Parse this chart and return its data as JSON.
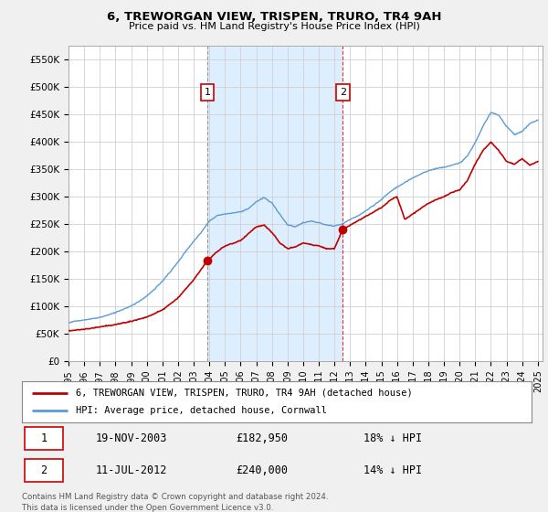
{
  "title": "6, TREWORGAN VIEW, TRISPEN, TRURO, TR4 9AH",
  "subtitle": "Price paid vs. HM Land Registry's House Price Index (HPI)",
  "ylim": [
    0,
    575000
  ],
  "yticks": [
    0,
    50000,
    100000,
    150000,
    200000,
    250000,
    300000,
    350000,
    400000,
    450000,
    500000,
    550000
  ],
  "ytick_labels": [
    "£0",
    "£50K",
    "£100K",
    "£150K",
    "£200K",
    "£250K",
    "£300K",
    "£350K",
    "£400K",
    "£450K",
    "£500K",
    "£550K"
  ],
  "hpi_color": "#5b9bd5",
  "price_color": "#c00000",
  "purchase1_date": 2003.88,
  "purchase1_price": 182950,
  "purchase1_label": "1",
  "purchase2_date": 2012.53,
  "purchase2_price": 240000,
  "purchase2_label": "2",
  "legend_line1": "6, TREWORGAN VIEW, TRISPEN, TRURO, TR4 9AH (detached house)",
  "legend_line2": "HPI: Average price, detached house, Cornwall",
  "table_row1": [
    "1",
    "19-NOV-2003",
    "£182,950",
    "18% ↓ HPI"
  ],
  "table_row2": [
    "2",
    "11-JUL-2012",
    "£240,000",
    "14% ↓ HPI"
  ],
  "footer": "Contains HM Land Registry data © Crown copyright and database right 2024.\nThis data is licensed under the Open Government Licence v3.0.",
  "background_color": "#f0f0f0",
  "plot_bg_color": "#ffffff",
  "grid_color": "#d0d0d0",
  "shade_color": "#ddeeff",
  "vline1_color": "#808080",
  "vline2_color": "#cc0000",
  "hpi_anchors_t": [
    1995.0,
    1996.0,
    1997.0,
    1997.5,
    1998.0,
    1998.5,
    1999.0,
    1999.5,
    2000.0,
    2000.5,
    2001.0,
    2001.5,
    2002.0,
    2002.5,
    2003.0,
    2003.5,
    2004.0,
    2004.5,
    2005.0,
    2005.5,
    2006.0,
    2006.5,
    2007.0,
    2007.5,
    2008.0,
    2008.5,
    2009.0,
    2009.5,
    2010.0,
    2010.5,
    2011.0,
    2011.5,
    2012.0,
    2012.5,
    2013.0,
    2013.5,
    2014.0,
    2014.5,
    2015.0,
    2015.5,
    2016.0,
    2016.5,
    2017.0,
    2017.5,
    2018.0,
    2018.5,
    2019.0,
    2019.5,
    2020.0,
    2020.5,
    2021.0,
    2021.5,
    2022.0,
    2022.5,
    2023.0,
    2023.5,
    2024.0,
    2024.5,
    2025.0
  ],
  "hpi_anchors_v": [
    70000,
    74000,
    79000,
    83000,
    88000,
    94000,
    100000,
    108000,
    118000,
    130000,
    145000,
    162000,
    180000,
    200000,
    218000,
    235000,
    255000,
    265000,
    268000,
    270000,
    272000,
    278000,
    290000,
    298000,
    288000,
    268000,
    248000,
    245000,
    252000,
    255000,
    252000,
    248000,
    246000,
    250000,
    258000,
    265000,
    274000,
    284000,
    295000,
    308000,
    318000,
    326000,
    335000,
    342000,
    348000,
    352000,
    355000,
    358000,
    362000,
    375000,
    400000,
    430000,
    455000,
    450000,
    430000,
    415000,
    420000,
    435000,
    440000
  ],
  "price_anchors_t": [
    1995.0,
    1996.0,
    1997.0,
    1998.0,
    1999.0,
    2000.0,
    2001.0,
    2002.0,
    2003.0,
    2003.88,
    2004.5,
    2005.0,
    2006.0,
    2007.0,
    2007.5,
    2008.0,
    2008.5,
    2009.0,
    2009.5,
    2010.0,
    2010.5,
    2011.0,
    2011.5,
    2012.0,
    2012.53,
    2013.0,
    2013.5,
    2014.0,
    2014.5,
    2015.0,
    2015.5,
    2016.0,
    2016.5,
    2017.0,
    2017.5,
    2018.0,
    2018.5,
    2019.0,
    2019.5,
    2020.0,
    2020.5,
    2021.0,
    2021.5,
    2022.0,
    2022.5,
    2023.0,
    2023.5,
    2024.0,
    2024.5,
    2025.0
  ],
  "price_anchors_v": [
    55000,
    58000,
    62000,
    66000,
    72000,
    80000,
    93000,
    115000,
    148000,
    182950,
    200000,
    210000,
    220000,
    245000,
    248000,
    235000,
    215000,
    205000,
    208000,
    215000,
    212000,
    210000,
    205000,
    205000,
    240000,
    248000,
    256000,
    264000,
    272000,
    280000,
    292000,
    300000,
    258000,
    268000,
    278000,
    288000,
    295000,
    300000,
    308000,
    312000,
    330000,
    360000,
    385000,
    400000,
    385000,
    365000,
    360000,
    370000,
    358000,
    365000
  ]
}
